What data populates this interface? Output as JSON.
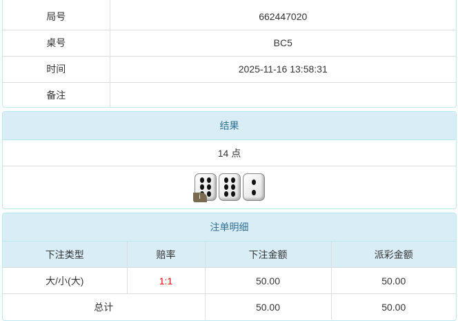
{
  "info": {
    "rows": [
      {
        "label": "局号",
        "value": "662447020"
      },
      {
        "label": "桌号",
        "value": "BC5"
      },
      {
        "label": "时间",
        "value": "2025-11-16 13:58:31"
      },
      {
        "label": "备注",
        "value": ""
      }
    ]
  },
  "result": {
    "title": "结果",
    "points": "14 点",
    "dice": [
      6,
      6,
      2
    ],
    "info_badge": "i"
  },
  "bets": {
    "title": "注单明细",
    "columns": [
      "下注类型",
      "赔率",
      "下注金额",
      "派彩金额"
    ],
    "rows": [
      {
        "type": "大/小(大)",
        "odds": "1:1",
        "amount": "50.00",
        "payout": "50.00"
      }
    ],
    "total": {
      "label": "总计",
      "amount": "50.00",
      "payout": "50.00"
    },
    "odds_color": "#ee0000"
  }
}
